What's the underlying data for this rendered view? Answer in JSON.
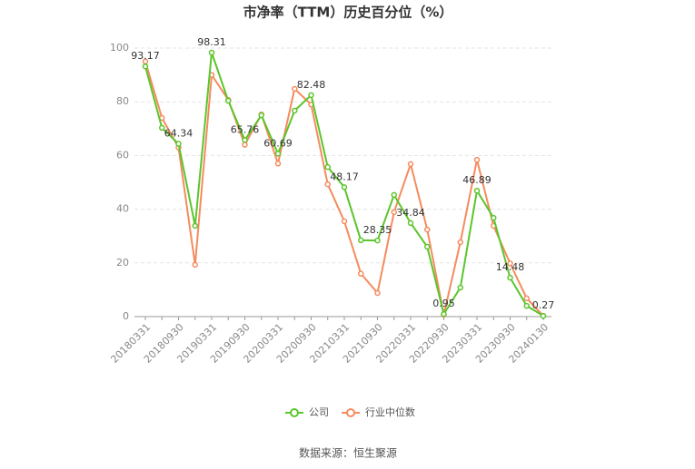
{
  "chart_data": {
    "type": "line",
    "title": "市净率（TTM）历史百分位（%）",
    "categories": [
      "20180331",
      null,
      "20180930",
      null,
      "20190331",
      null,
      "20190930",
      null,
      "20200331",
      null,
      "20200930",
      null,
      "20210331",
      null,
      "20210930",
      null,
      "20220331",
      null,
      "20220930",
      null,
      "20230331",
      null,
      "20230930",
      null,
      "20240130"
    ],
    "series": [
      {
        "name": "公司",
        "color": "#5cc52c",
        "values": [
          93.17,
          70.3,
          64.34,
          33.8,
          98.31,
          80.4,
          65.76,
          75,
          60.69,
          76.7,
          82.48,
          55.7,
          48.17,
          28.4,
          28.35,
          45.3,
          34.84,
          26,
          0.95,
          10.8,
          46.89,
          36.8,
          14.48,
          4,
          0.27
        ],
        "value_labels": [
          "93.17",
          null,
          "64.34",
          null,
          "98.31",
          null,
          "65.76",
          null,
          "60.69",
          null,
          "82.48",
          null,
          "48.17",
          null,
          "28.35",
          null,
          "34.84",
          null,
          "0.95",
          null,
          "46.89",
          null,
          "14.48",
          null,
          "0.27"
        ]
      },
      {
        "name": "行业中位数",
        "color": "#f58b5e",
        "values": [
          95,
          74,
          63,
          19.3,
          90,
          80.7,
          64,
          75.3,
          57,
          84.8,
          79,
          49.3,
          35.5,
          16,
          8.8,
          38.9,
          56.8,
          32.4,
          0.7,
          27.7,
          58.4,
          33.8,
          19.8,
          6.8,
          0.3
        ]
      }
    ],
    "ylim": [
      0,
      100
    ],
    "yticks": [
      0,
      20,
      40,
      60,
      80,
      100
    ],
    "grid": true,
    "legend": "bottom",
    "source": "数据来源：恒生聚源"
  }
}
